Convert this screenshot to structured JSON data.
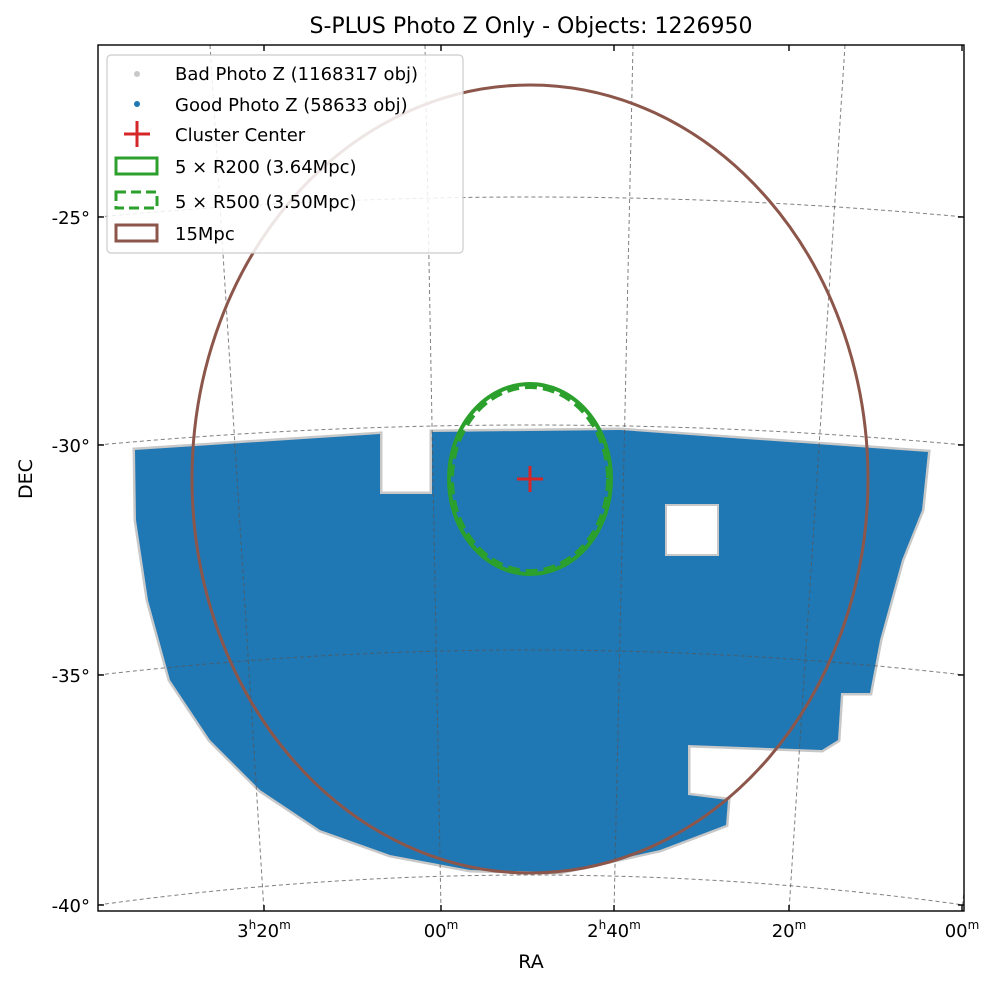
{
  "chart_data": {
    "type": "scatter",
    "title": "S-PLUS Photo Z Only - Objects: 1226950",
    "xlabel": "RA",
    "ylabel": "DEC",
    "projection": "gnomonic-like sky projection with curved RA/DEC grid (dashed)",
    "grid": true,
    "legend_position": "top-left",
    "ra_ticks": [
      {
        "ra_deg": 50,
        "label_main": "3",
        "label_sup1": "h",
        "label_mid": "20",
        "label_sup2": "m"
      },
      {
        "ra_deg": 45,
        "label_main": "00",
        "label_sup1": "m",
        "label_mid": "",
        "label_sup2": ""
      },
      {
        "ra_deg": 40,
        "label_main": "2",
        "label_sup1": "h",
        "label_mid": "40",
        "label_sup2": "m"
      },
      {
        "ra_deg": 35,
        "label_main": "20",
        "label_sup1": "m",
        "label_mid": "",
        "label_sup2": ""
      },
      {
        "ra_deg": 30,
        "label_main": "00",
        "label_sup1": "m",
        "label_mid": "",
        "label_sup2": ""
      }
    ],
    "dec_ticks": [
      {
        "dec_deg": -25,
        "label": "-25°"
      },
      {
        "dec_deg": -30,
        "label": "-30°"
      },
      {
        "dec_deg": -35,
        "label": "-35°"
      },
      {
        "dec_deg": -40,
        "label": "-40°"
      }
    ],
    "series": [
      {
        "name": "Bad Photo Z (1168317 obj)",
        "kind": "points",
        "color": "#c8c8c8",
        "count": 1168317
      },
      {
        "name": "Good Photo Z (58633 obj)",
        "kind": "points",
        "color": "#1f77b4",
        "count": 58633
      },
      {
        "name": "Cluster Center",
        "kind": "marker",
        "color": "#d62728",
        "ra_deg": 42.1,
        "dec_deg": -30.7
      },
      {
        "name": "5 × R200 (3.64Mpc)",
        "kind": "circle",
        "color": "#2ca02c",
        "style": "solid",
        "center_ra_deg": 42.1,
        "center_dec_deg": -30.7,
        "radius_deg": 2.05
      },
      {
        "name": "5 × R500 (3.50Mpc)",
        "kind": "circle",
        "color": "#2ca02c",
        "style": "dashed",
        "center_ra_deg": 42.1,
        "center_dec_deg": -30.7,
        "radius_deg": 1.97
      },
      {
        "name": "15Mpc",
        "kind": "circle",
        "color": "#8c564b",
        "style": "solid",
        "center_ra_deg": 42.1,
        "center_dec_deg": -30.7,
        "radius_deg": 8.5
      }
    ],
    "footprint_dec_range": [
      -39.2,
      -29.8
    ],
    "footprint_ra_range": [
      29.5,
      54.0
    ],
    "footprint_holes": [
      {
        "ra_range": [
          46.0,
          48.3
        ],
        "dec_range": [
          -31.0,
          -29.8
        ]
      },
      {
        "ra_range": [
          36.8,
          38.3
        ],
        "dec_range": [
          -32.3,
          -31.2
        ]
      },
      {
        "ra_range": [
          36.3,
          38.5
        ],
        "dec_range": [
          -38.2,
          -36.9
        ]
      }
    ]
  }
}
